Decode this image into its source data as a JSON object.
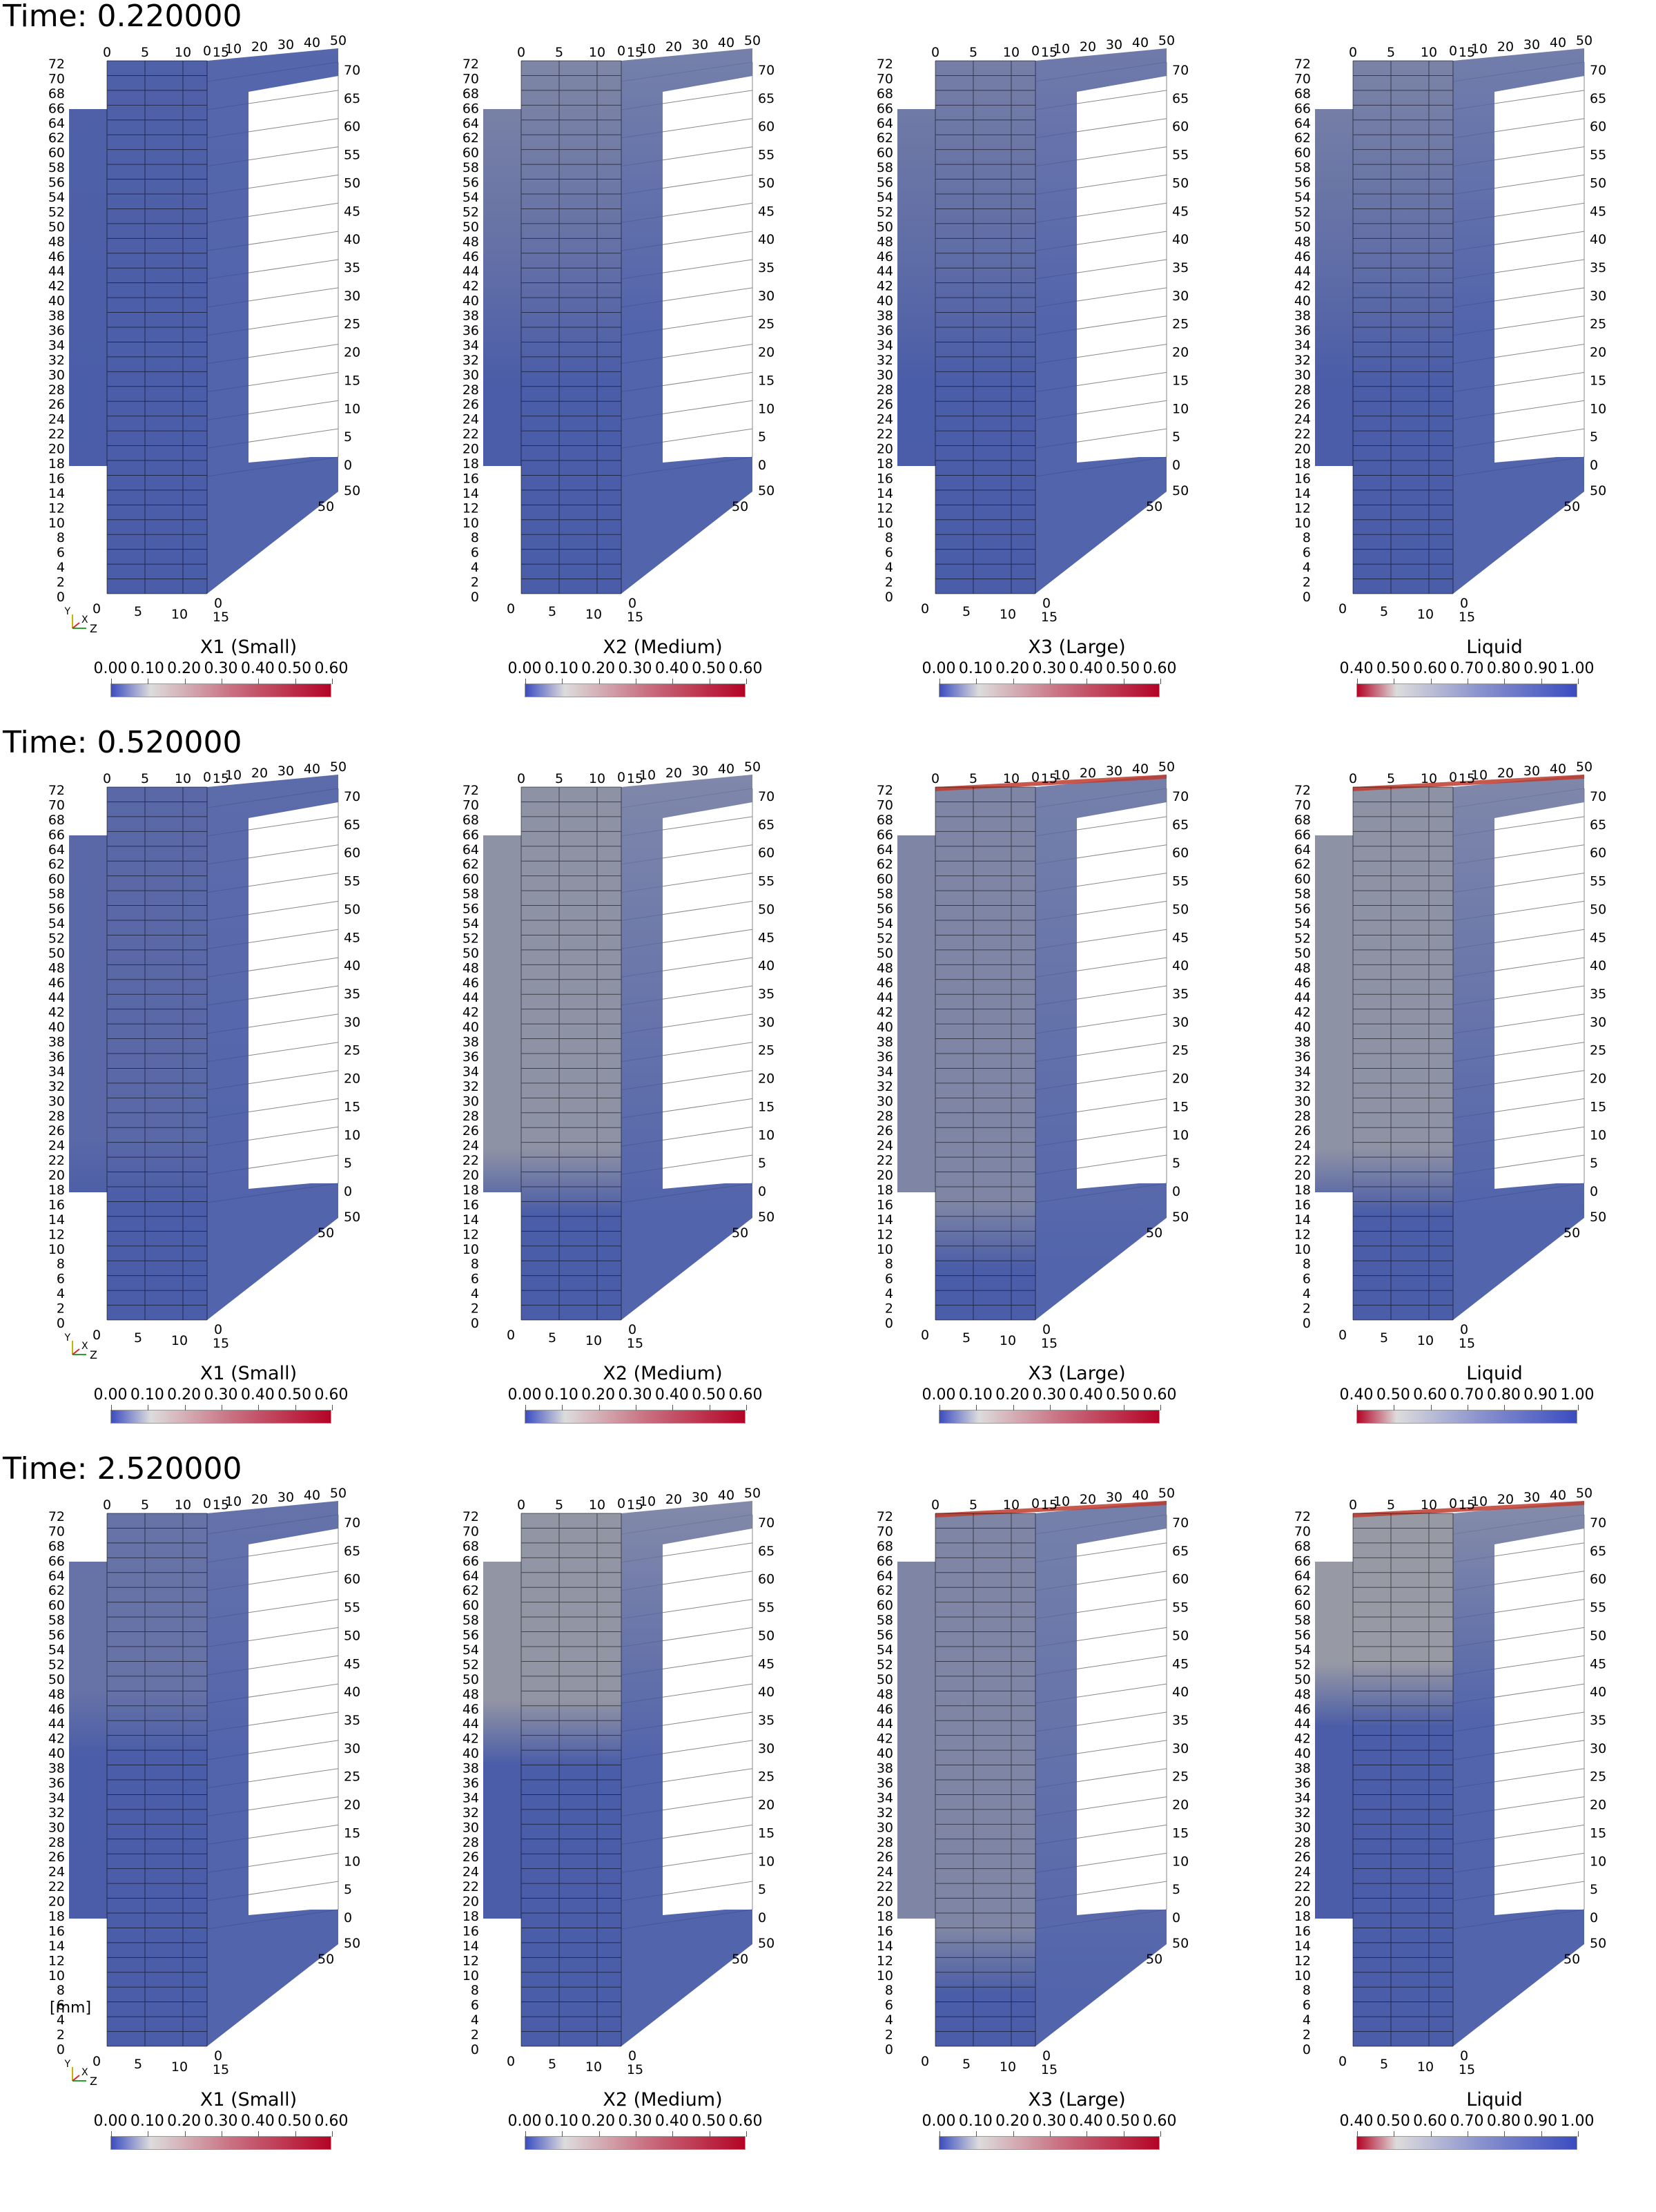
{
  "time_labels": [
    "Time: 0.220000",
    "Time: 0.520000",
    "Time: 2.520000"
  ],
  "unit_label": "[mm]",
  "axis_ticks": {
    "z_left": [
      "72",
      "70",
      "68",
      "66",
      "64",
      "62",
      "60",
      "58",
      "56",
      "54",
      "52",
      "50",
      "48",
      "46",
      "44",
      "42",
      "40",
      "38",
      "36",
      "34",
      "32",
      "30",
      "28",
      "26",
      "24",
      "22",
      "20",
      "18",
      "16",
      "14",
      "12",
      "10",
      "8",
      "6",
      "4",
      "2",
      "0"
    ],
    "y_right": [
      "70",
      "65",
      "60",
      "55",
      "50",
      "45",
      "40",
      "35",
      "30",
      "25",
      "20",
      "15",
      "10",
      "5",
      "0"
    ],
    "x_top_a": [
      "0",
      "5",
      "10",
      "15"
    ],
    "x_top_b": [
      "0",
      "10",
      "20",
      "30",
      "40",
      "50"
    ],
    "x_bottom": [
      "0",
      "5",
      "10",
      "15"
    ],
    "depth_bottom": [
      "0",
      "50"
    ],
    "depth_right": [
      "50"
    ]
  },
  "orientation_axes": {
    "x": "X",
    "y": "Y",
    "z": "Z"
  },
  "colorbars": [
    {
      "title": "X1 (Small)",
      "ticks": [
        "0.00",
        "0.10",
        "0.20",
        "0.30",
        "0.40",
        "0.50",
        "0.60"
      ],
      "colors": [
        "#3b4cc0",
        "#dddcdc",
        "#b40426"
      ]
    },
    {
      "title": "X2 (Medium)",
      "ticks": [
        "0.00",
        "0.10",
        "0.20",
        "0.30",
        "0.40",
        "0.50",
        "0.60"
      ],
      "colors": [
        "#3b4cc0",
        "#dddcdc",
        "#b40426"
      ]
    },
    {
      "title": "X3 (Large)",
      "ticks": [
        "0.00",
        "0.10",
        "0.20",
        "0.30",
        "0.40",
        "0.50",
        "0.60"
      ],
      "colors": [
        "#3b4cc0",
        "#dddcdc",
        "#b40426"
      ]
    },
    {
      "title": "Liquid",
      "ticks": [
        "0.40",
        "0.50",
        "0.60",
        "0.70",
        "0.80",
        "0.90",
        "1.00"
      ],
      "colors": [
        "#b40426",
        "#dddcdc",
        "#3b4cc0"
      ]
    }
  ],
  "field_colors": {
    "low": "#3b4fa0",
    "mid": "#a3a09b",
    "high": "#c0392b",
    "frame": "#000000"
  },
  "panels": [
    {
      "row": 0,
      "field": "X1 (Small)",
      "front_level_top": 0.05,
      "interface_fraction": 0.0,
      "top_red": false
    },
    {
      "row": 0,
      "field": "X2 (Medium)",
      "front_level_top": 0.55,
      "interface_fraction": 0.0,
      "top_red": false
    },
    {
      "row": 0,
      "field": "X3 (Large)",
      "front_level_top": 0.45,
      "interface_fraction": 0.0,
      "top_red": false
    },
    {
      "row": 0,
      "field": "Liquid",
      "front_level_top": 0.5,
      "interface_fraction": 0.0,
      "top_red": false
    },
    {
      "row": 1,
      "field": "X1 (Small)",
      "front_level_top": 0.15,
      "interface_fraction": 0.78,
      "top_red": false
    },
    {
      "row": 1,
      "field": "X2 (Medium)",
      "front_level_top": 0.7,
      "interface_fraction": 0.8,
      "top_red": false
    },
    {
      "row": 1,
      "field": "X3 (Large)",
      "front_level_top": 0.55,
      "interface_fraction": 0.9,
      "top_red": true
    },
    {
      "row": 1,
      "field": "Liquid",
      "front_level_top": 0.7,
      "interface_fraction": 0.8,
      "top_red": true
    },
    {
      "row": 2,
      "field": "X1 (Small)",
      "front_level_top": 0.3,
      "interface_fraction": 0.45,
      "top_red": false
    },
    {
      "row": 2,
      "field": "X2 (Medium)",
      "front_level_top": 0.75,
      "interface_fraction": 0.47,
      "top_red": false
    },
    {
      "row": 2,
      "field": "X3 (Large)",
      "front_level_top": 0.55,
      "interface_fraction": 0.9,
      "top_red": true
    },
    {
      "row": 2,
      "field": "Liquid",
      "front_level_top": 0.8,
      "interface_fraction": 0.4,
      "top_red": true
    }
  ]
}
